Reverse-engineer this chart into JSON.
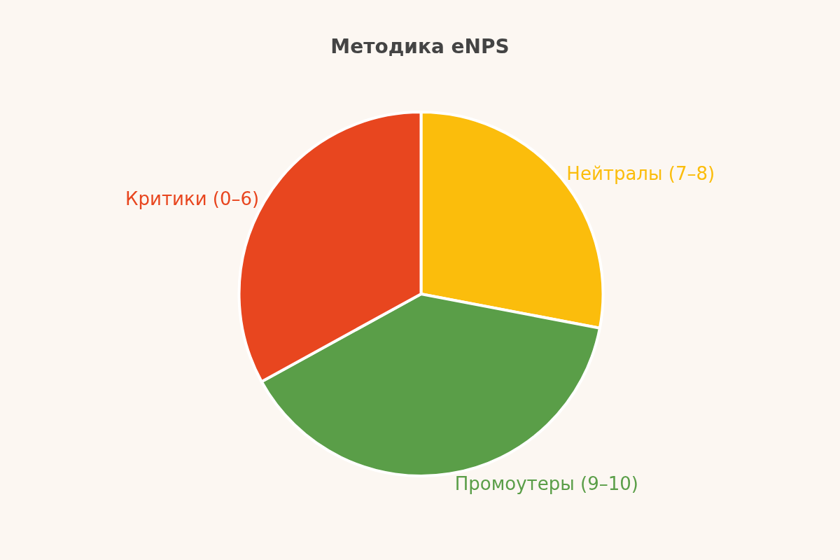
{
  "chart_data": {
    "type": "pie",
    "title": "Методика eNPS",
    "categories": [
      "Нейтралы (7–8)",
      "Промоутеры (9–10)",
      "Критики (0–6)"
    ],
    "values": [
      28,
      39,
      33
    ],
    "colors": [
      "#fbbd0c",
      "#5a9e48",
      "#e8461f"
    ],
    "legend": false
  }
}
